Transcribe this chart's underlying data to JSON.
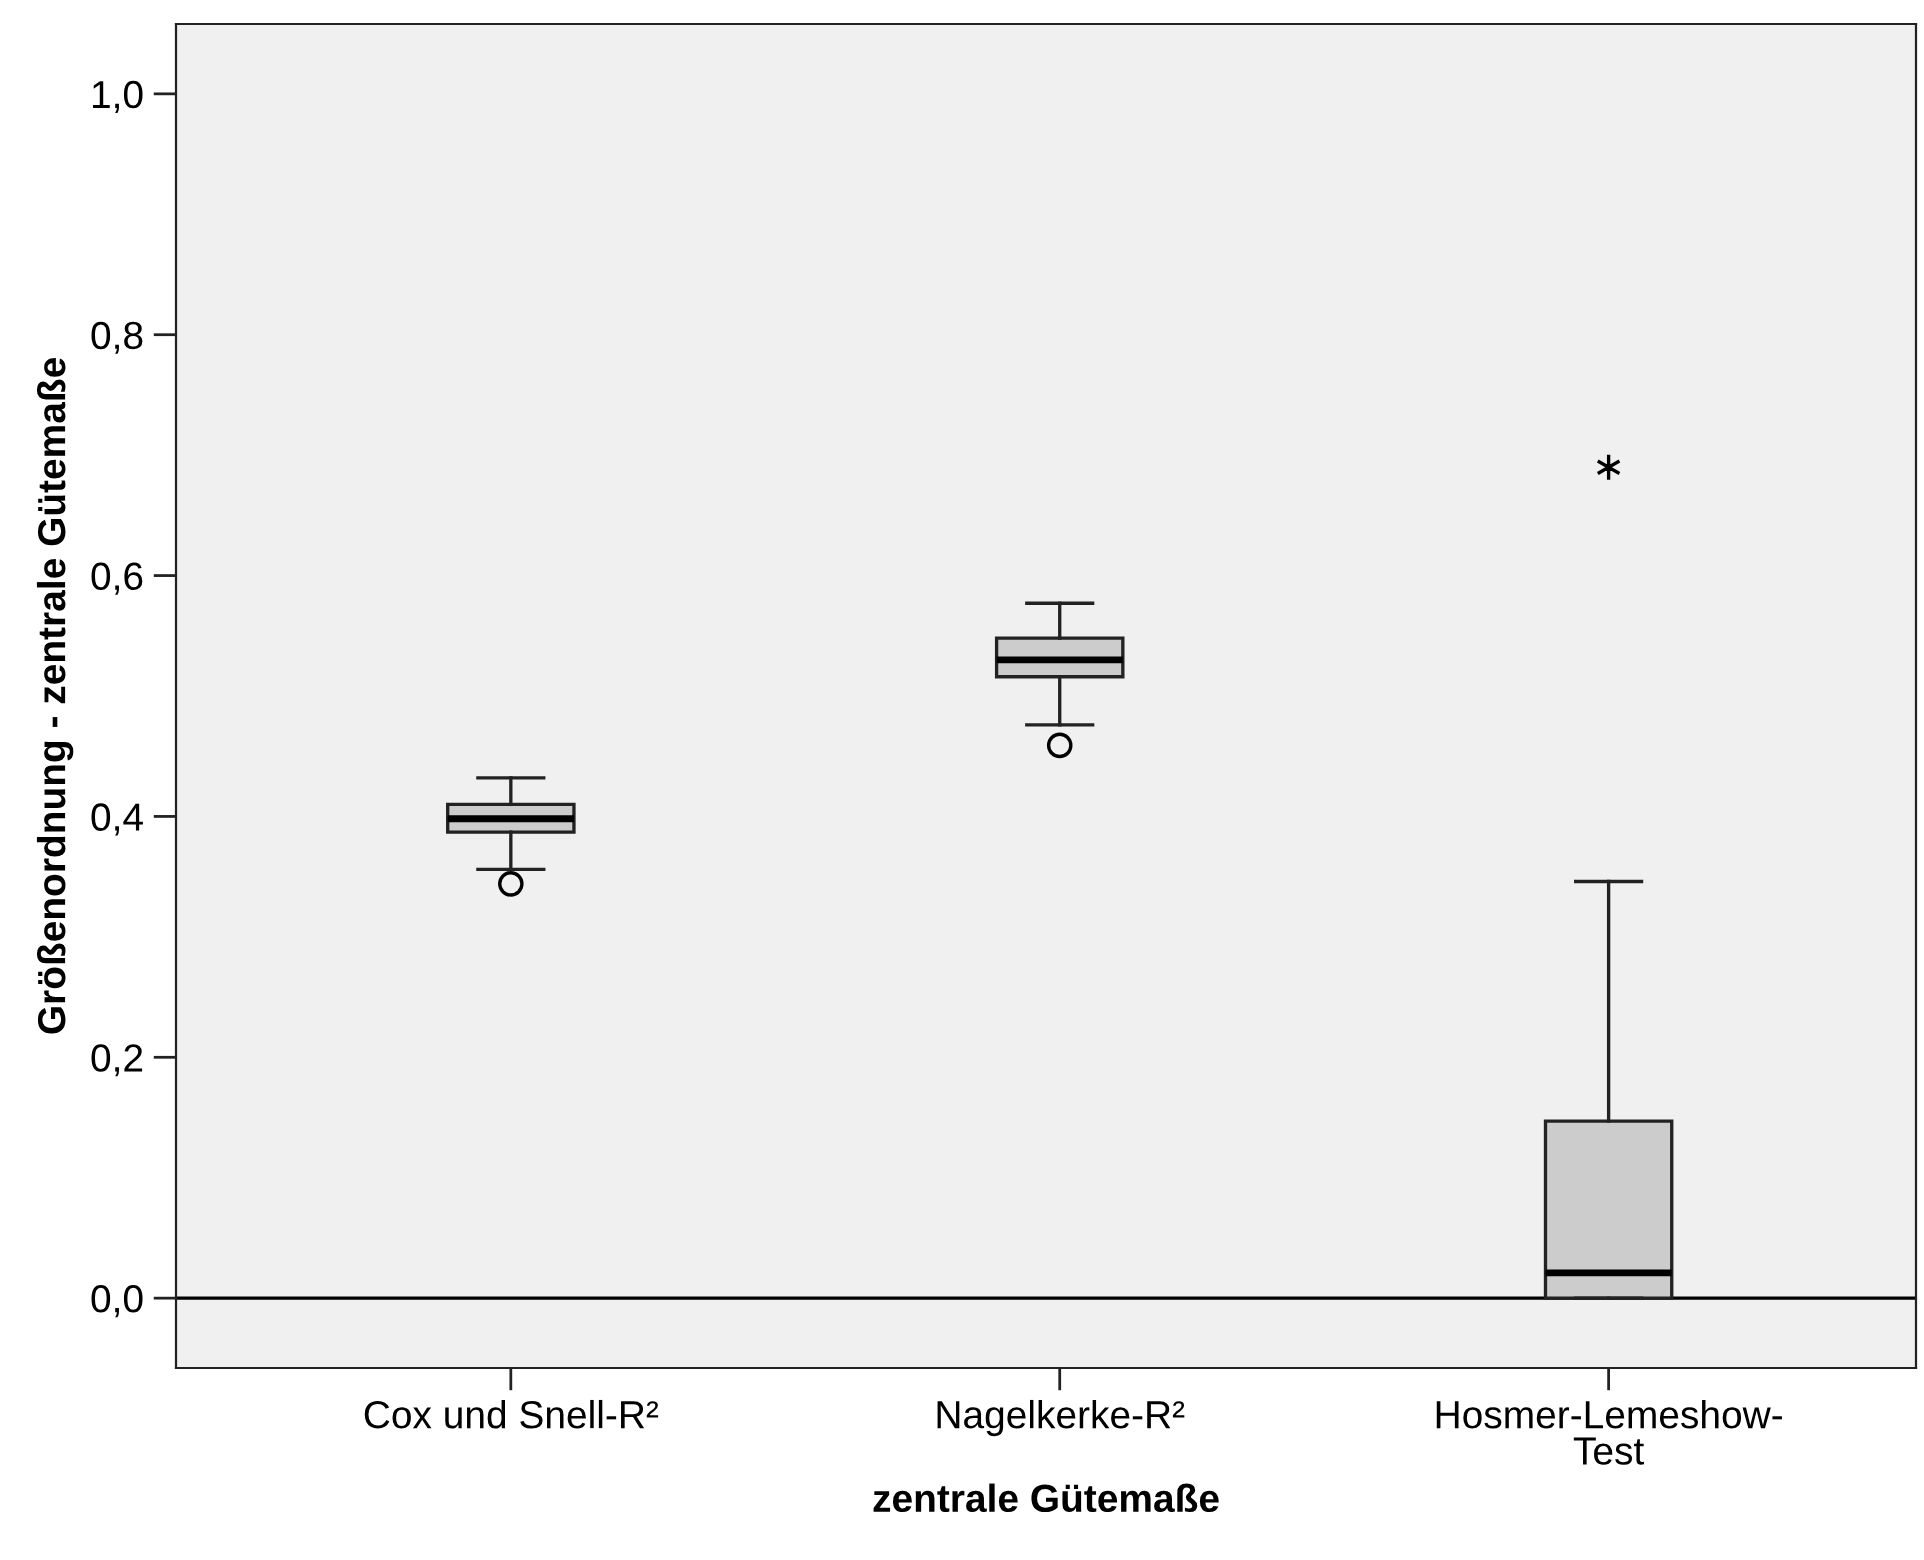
{
  "chart_data": {
    "type": "box",
    "xlabel": "zentrale Gütemaße",
    "ylabel": "Größenordnung - zentrale Gütemaße",
    "categories": [
      "Cox und Snell-R²",
      "Nagelkerke-R²",
      "Hosmer-Lemeshow-Test"
    ],
    "boxes": [
      {
        "low": 0.356,
        "q1": 0.387,
        "median": 0.398,
        "q3": 0.41,
        "high": 0.432,
        "outliers": [
          0.344
        ]
      },
      {
        "low": 0.476,
        "q1": 0.516,
        "median": 0.53,
        "q3": 0.548,
        "high": 0.577,
        "outliers": [
          0.459
        ]
      },
      {
        "low": 0.0,
        "q1": 0.0,
        "median": 0.021,
        "q3": 0.147,
        "high": 0.346,
        "outliers": [
          0.69
        ]
      }
    ],
    "color": "#cccccc",
    "ylim": [
      -0.058,
      1.058
    ],
    "yticks": [
      {
        "value": 0,
        "label": "0,0"
      },
      {
        "value": 0.2,
        "label": "0,2"
      },
      {
        "value": 0.4,
        "label": "0,4"
      },
      {
        "value": 0.6,
        "label": "0,6"
      },
      {
        "value": 0.8,
        "label": "0,8"
      },
      {
        "value": 1.0,
        "label": "1,0"
      }
    ],
    "ref_lines": [
      {
        "axis": "y",
        "value": 0,
        "color": "#000000"
      }
    ],
    "grid": false
  }
}
